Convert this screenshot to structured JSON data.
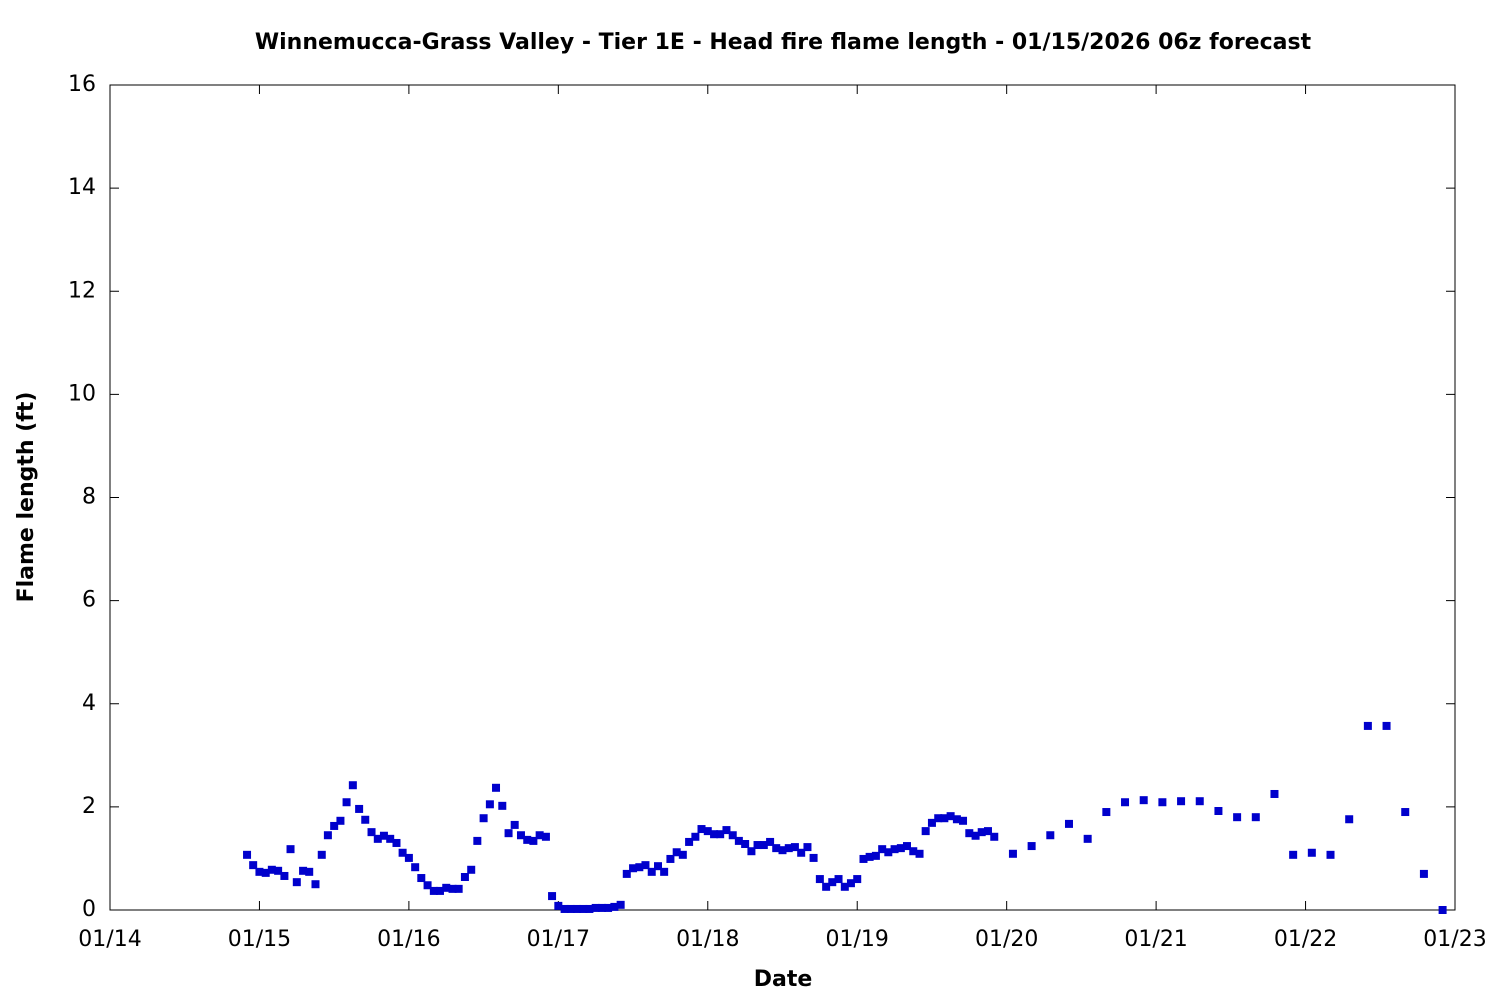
{
  "chart_data": {
    "type": "scatter",
    "title": "Winnemucca-Grass Valley - Tier 1E - Head fire flame length - 01/15/2026 06z forecast",
    "xlabel": "Date",
    "ylabel": "Flame length (ft)",
    "color": "#0000cc",
    "x": [
      14.917,
      14.958,
      15.0,
      15.042,
      15.083,
      15.125,
      15.167,
      15.208,
      15.25,
      15.292,
      15.333,
      15.375,
      15.417,
      15.458,
      15.5,
      15.542,
      15.583,
      15.625,
      15.667,
      15.708,
      15.75,
      15.792,
      15.833,
      15.875,
      15.917,
      15.958,
      16.0,
      16.042,
      16.083,
      16.125,
      16.167,
      16.208,
      16.25,
      16.292,
      16.333,
      16.375,
      16.417,
      16.458,
      16.5,
      16.542,
      16.583,
      16.625,
      16.667,
      16.708,
      16.75,
      16.792,
      16.833,
      16.875,
      16.917,
      16.958,
      17.0,
      17.042,
      17.083,
      17.125,
      17.167,
      17.208,
      17.25,
      17.292,
      17.333,
      17.375,
      17.417,
      17.458,
      17.5,
      17.542,
      17.583,
      17.625,
      17.667,
      17.708,
      17.75,
      17.792,
      17.833,
      17.875,
      17.917,
      17.958,
      18.0,
      18.042,
      18.083,
      18.125,
      18.167,
      18.208,
      18.25,
      18.292,
      18.333,
      18.375,
      18.417,
      18.458,
      18.5,
      18.542,
      18.583,
      18.625,
      18.667,
      18.708,
      18.75,
      18.792,
      18.833,
      18.875,
      18.917,
      18.958,
      19.0,
      19.042,
      19.083,
      19.125,
      19.167,
      19.208,
      19.25,
      19.292,
      19.333,
      19.375,
      19.417,
      19.458,
      19.5,
      19.542,
      19.583,
      19.625,
      19.667,
      19.708,
      19.75,
      19.792,
      19.833,
      19.875,
      19.917,
      20.042,
      20.167,
      20.292,
      20.417,
      20.542,
      20.667,
      20.792,
      20.917,
      21.042,
      21.167,
      21.292,
      21.417,
      21.542,
      21.667,
      21.792,
      21.917,
      22.042,
      22.167,
      22.292,
      22.417,
      22.542,
      22.667,
      22.792,
      22.917
    ],
    "values": [
      1.07,
      0.87,
      0.74,
      0.72,
      0.78,
      0.76,
      0.66,
      1.18,
      0.54,
      0.76,
      0.74,
      0.5,
      1.07,
      1.45,
      1.63,
      1.73,
      2.09,
      2.42,
      1.96,
      1.75,
      1.51,
      1.38,
      1.44,
      1.38,
      1.3,
      1.11,
      1.01,
      0.83,
      0.62,
      0.48,
      0.37,
      0.37,
      0.43,
      0.41,
      0.41,
      0.64,
      0.78,
      1.34,
      1.78,
      2.05,
      2.37,
      2.02,
      1.49,
      1.65,
      1.45,
      1.36,
      1.34,
      1.45,
      1.42,
      0.27,
      0.08,
      0.02,
      0.02,
      0.02,
      0.02,
      0.02,
      0.04,
      0.04,
      0.04,
      0.06,
      0.1,
      0.7,
      0.81,
      0.83,
      0.87,
      0.74,
      0.85,
      0.74,
      0.99,
      1.12,
      1.07,
      1.32,
      1.42,
      1.57,
      1.53,
      1.47,
      1.47,
      1.55,
      1.45,
      1.34,
      1.28,
      1.14,
      1.26,
      1.26,
      1.32,
      1.2,
      1.16,
      1.2,
      1.22,
      1.11,
      1.22,
      1.01,
      0.6,
      0.45,
      0.54,
      0.6,
      0.45,
      0.52,
      0.6,
      0.99,
      1.03,
      1.05,
      1.18,
      1.12,
      1.18,
      1.2,
      1.24,
      1.14,
      1.09,
      1.53,
      1.69,
      1.78,
      1.78,
      1.82,
      1.76,
      1.73,
      1.49,
      1.44,
      1.51,
      1.53,
      1.42,
      1.09,
      1.24,
      1.45,
      1.67,
      1.38,
      1.9,
      2.09,
      2.13,
      2.09,
      2.11,
      2.11,
      1.92,
      1.8,
      1.8,
      2.25,
      1.07,
      1.11,
      1.07,
      1.76,
      3.57,
      3.57,
      1.9,
      0.7,
      0
    ],
    "xlim": [
      14,
      23
    ],
    "xticks": [
      {
        "value": 14,
        "label": "01/14"
      },
      {
        "value": 15,
        "label": "01/15"
      },
      {
        "value": 16,
        "label": "01/16"
      },
      {
        "value": 17,
        "label": "01/17"
      },
      {
        "value": 18,
        "label": "01/18"
      },
      {
        "value": 19,
        "label": "01/19"
      },
      {
        "value": 20,
        "label": "01/20"
      },
      {
        "value": 21,
        "label": "01/21"
      },
      {
        "value": 22,
        "label": "01/22"
      },
      {
        "value": 23,
        "label": "01/23"
      }
    ],
    "ylim": [
      0,
      16
    ],
    "yticks": [
      0,
      2,
      4,
      6,
      8,
      10,
      12,
      14,
      16
    ]
  }
}
